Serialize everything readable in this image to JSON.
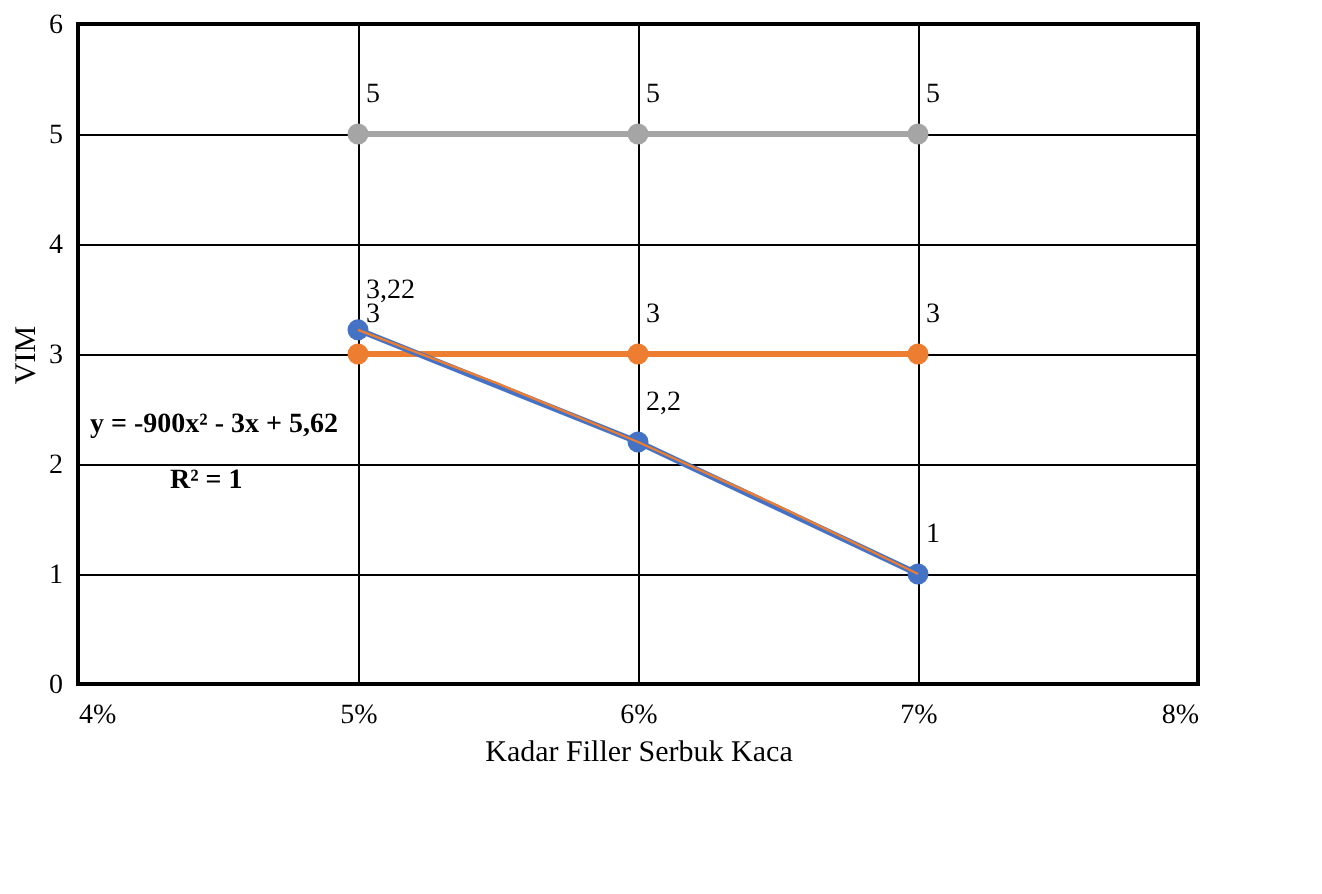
{
  "chart_data": {
    "type": "line",
    "xlabel": "Kadar Filler Serbuk Kaca",
    "ylabel": "VIM",
    "x": [
      0.05,
      0.06,
      0.07
    ],
    "series": [
      {
        "color": "#a5a5a5",
        "values": [
          5,
          5,
          5
        ],
        "value_labels": [
          "5",
          "5",
          "5"
        ]
      },
      {
        "color": "#ed7d31",
        "values": [
          3,
          3,
          3
        ],
        "value_labels": [
          "3",
          "3",
          "3"
        ]
      },
      {
        "color": "#4472c4",
        "values": [
          3.22,
          2.2,
          1
        ],
        "value_labels": [
          "3,22",
          "2,2",
          "1"
        ]
      },
      {
        "type": "line",
        "color": "#ed7d31",
        "marker": "none",
        "x": [
          0.05,
          0.055,
          0.06,
          0.065,
          0.07
        ],
        "values": [
          3.22,
          2.73,
          2.2,
          1.62,
          1.0
        ]
      }
    ],
    "xlim": [
      0.04,
      0.08
    ],
    "xticks": [
      {
        "value": 0.04,
        "label": "4%"
      },
      {
        "value": 0.05,
        "label": "5%"
      },
      {
        "value": 0.06,
        "label": "6%"
      },
      {
        "value": 0.07,
        "label": "7%"
      },
      {
        "value": 0.08,
        "label": "8%"
      }
    ],
    "ylim": [
      0,
      6
    ],
    "yticks": [
      0,
      1,
      2,
      3,
      4,
      5,
      6
    ],
    "grid": true,
    "marker": "circle",
    "annotations": [
      "y = -900x² - 3x + 5,62",
      "R² = 1"
    ]
  }
}
